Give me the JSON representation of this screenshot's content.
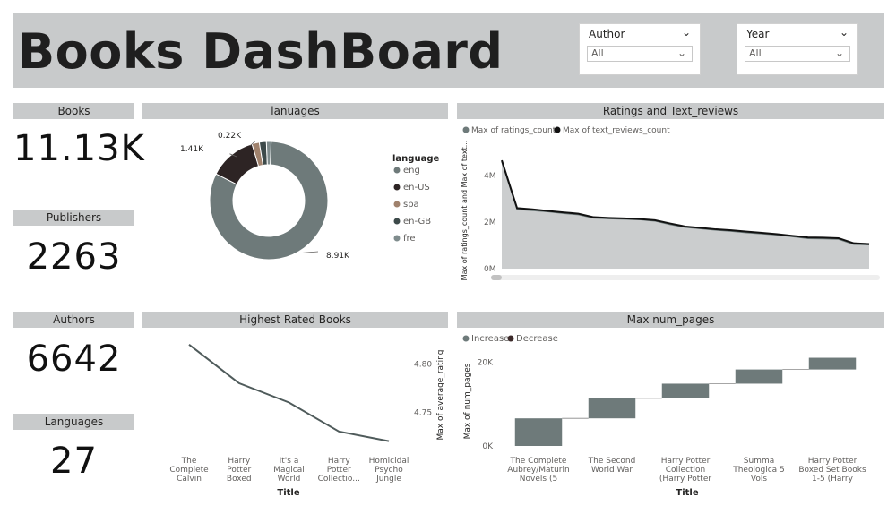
{
  "header": {
    "title": "Books DashBoard",
    "slicers": [
      {
        "label": "Author",
        "value": "All"
      },
      {
        "label": "Year",
        "value": "All"
      }
    ]
  },
  "kpis": [
    {
      "label": "Books",
      "value": "11.13K"
    },
    {
      "label": "Publishers",
      "value": "2263"
    },
    {
      "label": "Authors",
      "value": "6642"
    },
    {
      "label": "Languages",
      "value": "27"
    }
  ],
  "colors": {
    "band": "#c8cacb",
    "donut_main": "#6e7a7a",
    "donut_enUS": "#2d2424",
    "donut_spa": "#a0826d",
    "donut_enGB": "#3d4a4a",
    "donut_fre": "#7f8c8d",
    "area_fill": "#cbcdce",
    "line_dark": "#111111",
    "line_grey": "#6e7a7a",
    "increase": "#6e7a7a",
    "decrease": "#3c2a2a"
  },
  "chart_data": [
    {
      "type": "pie",
      "title": "lanuages",
      "legend_title": "language",
      "legend_position": "right",
      "categories": [
        "eng",
        "en-US",
        "spa",
        "en-GB",
        "fre"
      ],
      "values": [
        8910,
        1410,
        220,
        210,
        140
      ],
      "data_labels": [
        "8.91K",
        "1.41K",
        "0.22K",
        "",
        ""
      ]
    },
    {
      "type": "area",
      "title": "Ratings and Text_reviews",
      "ylabel": "Max of ratings_count and Max of text...",
      "legend_position": "top-left",
      "yticks": [
        "0M",
        "2M",
        "4M"
      ],
      "ylim": [
        0,
        5000000
      ],
      "series": [
        {
          "name": "Max of ratings_count",
          "values": [
            4600000,
            2550000,
            2500000,
            2450000,
            2380000,
            2320000,
            2180000,
            2150000,
            2130000,
            2110000,
            2050000,
            1900000,
            1780000,
            1720000,
            1660000,
            1610000,
            1550000,
            1500000,
            1450000,
            1380000,
            1300000,
            1290000,
            1270000,
            1050000,
            1030000
          ]
        },
        {
          "name": "Max of text_reviews_count",
          "values": [
            4650000,
            2600000,
            2550000,
            2480000,
            2420000,
            2360000,
            2210000,
            2180000,
            2160000,
            2130000,
            2080000,
            1940000,
            1810000,
            1750000,
            1690000,
            1650000,
            1590000,
            1540000,
            1480000,
            1410000,
            1340000,
            1330000,
            1310000,
            1090000,
            1060000
          ]
        }
      ]
    },
    {
      "type": "line",
      "title": "Highest Rated Books",
      "xlabel": "Title",
      "ylabel": "Max of average_rating",
      "yticks": [
        "4.80",
        "4.75"
      ],
      "ylim": [
        4.715,
        4.83
      ],
      "categories": [
        "The Complete Calvin a...",
        "Harry Potter Boxed S...",
        "It's a Magical World (C...",
        "Harry Potter Collectio...",
        "Homicidal Psycho Jungle C..."
      ],
      "values": [
        4.82,
        4.78,
        4.76,
        4.73,
        4.72
      ]
    },
    {
      "type": "bar",
      "title": "Max num_pages",
      "xlabel": "Title",
      "ylabel": "Max of num_pages",
      "legend": [
        "Increase",
        "Decrease"
      ],
      "yticks": [
        "0K",
        "20K"
      ],
      "ylim": [
        0,
        24000
      ],
      "categories": [
        "The Complete Aubrey/Maturin Novels (5 Volu...",
        "The Second World War",
        "Harry Potter Collection (Harry Potter #1-6)",
        "Summa Theologica 5 Vols",
        "Harry Potter Boxed Set Books 1-5 (Harry Potte..."
      ],
      "values": [
        6600,
        4800,
        3500,
        3400,
        2800
      ]
    }
  ]
}
